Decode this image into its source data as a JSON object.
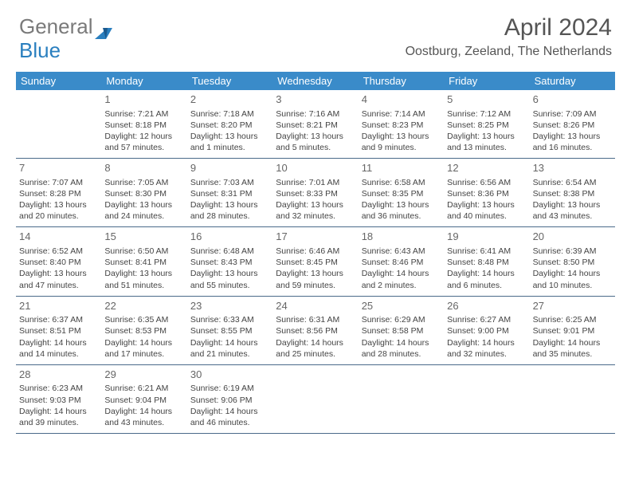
{
  "logo": {
    "text_gray": "General",
    "text_blue": "Blue"
  },
  "header": {
    "month_title": "April 2024",
    "location": "Oostburg, Zeeland, The Netherlands"
  },
  "colors": {
    "header_bg": "#3a8bc9",
    "header_text": "#ffffff",
    "border": "#4a6a8a",
    "logo_gray": "#7a7a7a",
    "logo_blue": "#2a7fbf"
  },
  "day_labels": [
    "Sunday",
    "Monday",
    "Tuesday",
    "Wednesday",
    "Thursday",
    "Friday",
    "Saturday"
  ],
  "weeks": [
    [
      {
        "day": "",
        "lines": []
      },
      {
        "day": "1",
        "lines": [
          "Sunrise: 7:21 AM",
          "Sunset: 8:18 PM",
          "Daylight: 12 hours",
          "and 57 minutes."
        ]
      },
      {
        "day": "2",
        "lines": [
          "Sunrise: 7:18 AM",
          "Sunset: 8:20 PM",
          "Daylight: 13 hours",
          "and 1 minutes."
        ]
      },
      {
        "day": "3",
        "lines": [
          "Sunrise: 7:16 AM",
          "Sunset: 8:21 PM",
          "Daylight: 13 hours",
          "and 5 minutes."
        ]
      },
      {
        "day": "4",
        "lines": [
          "Sunrise: 7:14 AM",
          "Sunset: 8:23 PM",
          "Daylight: 13 hours",
          "and 9 minutes."
        ]
      },
      {
        "day": "5",
        "lines": [
          "Sunrise: 7:12 AM",
          "Sunset: 8:25 PM",
          "Daylight: 13 hours",
          "and 13 minutes."
        ]
      },
      {
        "day": "6",
        "lines": [
          "Sunrise: 7:09 AM",
          "Sunset: 8:26 PM",
          "Daylight: 13 hours",
          "and 16 minutes."
        ]
      }
    ],
    [
      {
        "day": "7",
        "lines": [
          "Sunrise: 7:07 AM",
          "Sunset: 8:28 PM",
          "Daylight: 13 hours",
          "and 20 minutes."
        ]
      },
      {
        "day": "8",
        "lines": [
          "Sunrise: 7:05 AM",
          "Sunset: 8:30 PM",
          "Daylight: 13 hours",
          "and 24 minutes."
        ]
      },
      {
        "day": "9",
        "lines": [
          "Sunrise: 7:03 AM",
          "Sunset: 8:31 PM",
          "Daylight: 13 hours",
          "and 28 minutes."
        ]
      },
      {
        "day": "10",
        "lines": [
          "Sunrise: 7:01 AM",
          "Sunset: 8:33 PM",
          "Daylight: 13 hours",
          "and 32 minutes."
        ]
      },
      {
        "day": "11",
        "lines": [
          "Sunrise: 6:58 AM",
          "Sunset: 8:35 PM",
          "Daylight: 13 hours",
          "and 36 minutes."
        ]
      },
      {
        "day": "12",
        "lines": [
          "Sunrise: 6:56 AM",
          "Sunset: 8:36 PM",
          "Daylight: 13 hours",
          "and 40 minutes."
        ]
      },
      {
        "day": "13",
        "lines": [
          "Sunrise: 6:54 AM",
          "Sunset: 8:38 PM",
          "Daylight: 13 hours",
          "and 43 minutes."
        ]
      }
    ],
    [
      {
        "day": "14",
        "lines": [
          "Sunrise: 6:52 AM",
          "Sunset: 8:40 PM",
          "Daylight: 13 hours",
          "and 47 minutes."
        ]
      },
      {
        "day": "15",
        "lines": [
          "Sunrise: 6:50 AM",
          "Sunset: 8:41 PM",
          "Daylight: 13 hours",
          "and 51 minutes."
        ]
      },
      {
        "day": "16",
        "lines": [
          "Sunrise: 6:48 AM",
          "Sunset: 8:43 PM",
          "Daylight: 13 hours",
          "and 55 minutes."
        ]
      },
      {
        "day": "17",
        "lines": [
          "Sunrise: 6:46 AM",
          "Sunset: 8:45 PM",
          "Daylight: 13 hours",
          "and 59 minutes."
        ]
      },
      {
        "day": "18",
        "lines": [
          "Sunrise: 6:43 AM",
          "Sunset: 8:46 PM",
          "Daylight: 14 hours",
          "and 2 minutes."
        ]
      },
      {
        "day": "19",
        "lines": [
          "Sunrise: 6:41 AM",
          "Sunset: 8:48 PM",
          "Daylight: 14 hours",
          "and 6 minutes."
        ]
      },
      {
        "day": "20",
        "lines": [
          "Sunrise: 6:39 AM",
          "Sunset: 8:50 PM",
          "Daylight: 14 hours",
          "and 10 minutes."
        ]
      }
    ],
    [
      {
        "day": "21",
        "lines": [
          "Sunrise: 6:37 AM",
          "Sunset: 8:51 PM",
          "Daylight: 14 hours",
          "and 14 minutes."
        ]
      },
      {
        "day": "22",
        "lines": [
          "Sunrise: 6:35 AM",
          "Sunset: 8:53 PM",
          "Daylight: 14 hours",
          "and 17 minutes."
        ]
      },
      {
        "day": "23",
        "lines": [
          "Sunrise: 6:33 AM",
          "Sunset: 8:55 PM",
          "Daylight: 14 hours",
          "and 21 minutes."
        ]
      },
      {
        "day": "24",
        "lines": [
          "Sunrise: 6:31 AM",
          "Sunset: 8:56 PM",
          "Daylight: 14 hours",
          "and 25 minutes."
        ]
      },
      {
        "day": "25",
        "lines": [
          "Sunrise: 6:29 AM",
          "Sunset: 8:58 PM",
          "Daylight: 14 hours",
          "and 28 minutes."
        ]
      },
      {
        "day": "26",
        "lines": [
          "Sunrise: 6:27 AM",
          "Sunset: 9:00 PM",
          "Daylight: 14 hours",
          "and 32 minutes."
        ]
      },
      {
        "day": "27",
        "lines": [
          "Sunrise: 6:25 AM",
          "Sunset: 9:01 PM",
          "Daylight: 14 hours",
          "and 35 minutes."
        ]
      }
    ],
    [
      {
        "day": "28",
        "lines": [
          "Sunrise: 6:23 AM",
          "Sunset: 9:03 PM",
          "Daylight: 14 hours",
          "and 39 minutes."
        ]
      },
      {
        "day": "29",
        "lines": [
          "Sunrise: 6:21 AM",
          "Sunset: 9:04 PM",
          "Daylight: 14 hours",
          "and 43 minutes."
        ]
      },
      {
        "day": "30",
        "lines": [
          "Sunrise: 6:19 AM",
          "Sunset: 9:06 PM",
          "Daylight: 14 hours",
          "and 46 minutes."
        ]
      },
      {
        "day": "",
        "lines": []
      },
      {
        "day": "",
        "lines": []
      },
      {
        "day": "",
        "lines": []
      },
      {
        "day": "",
        "lines": []
      }
    ]
  ]
}
